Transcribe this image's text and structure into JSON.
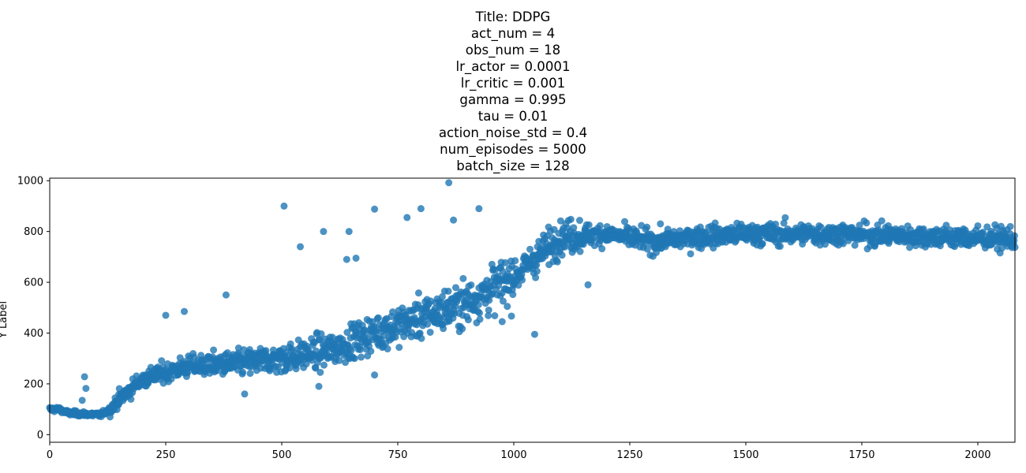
{
  "chart_data": {
    "type": "scatter",
    "title_lines": [
      "Title: DDPG",
      "act_num = 4",
      "obs_num = 18",
      "lr_actor = 0.0001",
      "lr_critic = 0.001",
      "gamma = 0.995",
      "tau = 0.01",
      "action_noise_std = 0.4",
      "num_episodes = 5000",
      "batch_size = 128"
    ],
    "xlabel": "",
    "ylabel": "Y Label",
    "xlim": [
      0,
      2080
    ],
    "ylim": [
      -30,
      1010
    ],
    "xticks": [
      0,
      250,
      500,
      750,
      1000,
      1250,
      1500,
      1750,
      2000
    ],
    "yticks": [
      0,
      200,
      400,
      600,
      800,
      1000
    ],
    "marker_color": "#1f77b4",
    "marker_alpha": 0.8,
    "grid": false,
    "trend_anchors": [
      [
        0,
        100
      ],
      [
        20,
        100
      ],
      [
        40,
        85
      ],
      [
        110,
        78
      ],
      [
        130,
        100
      ],
      [
        150,
        140
      ],
      [
        200,
        220
      ],
      [
        300,
        270
      ],
      [
        400,
        280
      ],
      [
        500,
        300
      ],
      [
        600,
        330
      ],
      [
        700,
        400
      ],
      [
        800,
        460
      ],
      [
        900,
        520
      ],
      [
        1000,
        620
      ],
      [
        1050,
        700
      ],
      [
        1100,
        780
      ],
      [
        1200,
        790
      ],
      [
        1300,
        760
      ],
      [
        1400,
        780
      ],
      [
        1500,
        790
      ],
      [
        1700,
        790
      ],
      [
        1900,
        780
      ],
      [
        2080,
        770
      ]
    ],
    "outliers": [
      [
        860,
        992
      ],
      [
        505,
        900
      ],
      [
        700,
        888
      ],
      [
        800,
        890
      ],
      [
        925,
        890
      ],
      [
        770,
        855
      ],
      [
        870,
        845
      ],
      [
        590,
        800
      ],
      [
        645,
        800
      ],
      [
        540,
        740
      ],
      [
        640,
        690
      ],
      [
        660,
        695
      ],
      [
        380,
        550
      ],
      [
        290,
        485
      ],
      [
        250,
        470
      ],
      [
        1045,
        395
      ],
      [
        975,
        445
      ],
      [
        580,
        190
      ],
      [
        700,
        235
      ],
      [
        75,
        228
      ],
      [
        78,
        182
      ],
      [
        70,
        135
      ],
      [
        1160,
        590
      ],
      [
        420,
        160
      ]
    ]
  }
}
